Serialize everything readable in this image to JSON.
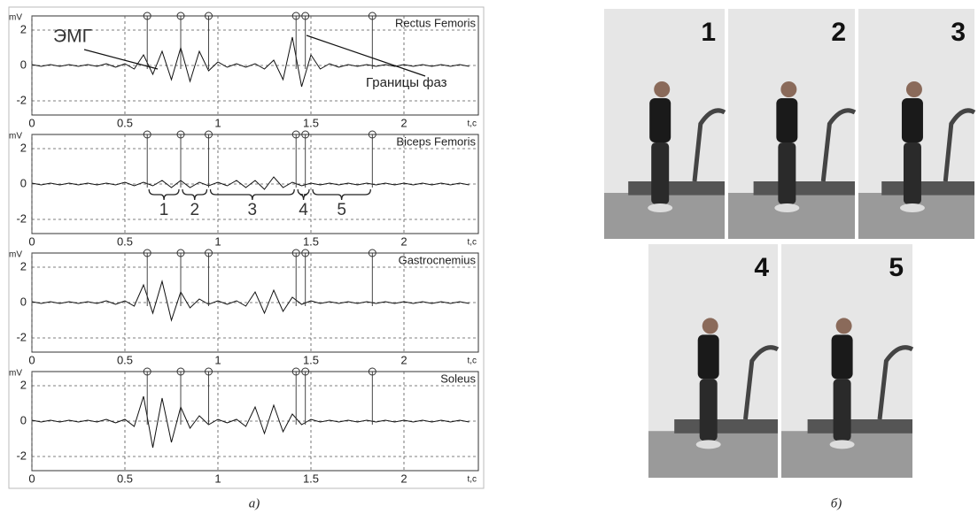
{
  "chart_data": [
    {
      "type": "line",
      "title": "Rectus Femoris",
      "y_label": "mV",
      "x_label": "t,c",
      "x": [
        0,
        0.05,
        0.1,
        0.15,
        0.2,
        0.25,
        0.3,
        0.35,
        0.4,
        0.45,
        0.5,
        0.55,
        0.6,
        0.65,
        0.7,
        0.75,
        0.8,
        0.85,
        0.9,
        0.95,
        1,
        1.05,
        1.1,
        1.15,
        1.2,
        1.25,
        1.3,
        1.35,
        1.4,
        1.45,
        1.5,
        1.55,
        1.6,
        1.65,
        1.7,
        1.75,
        1.8,
        1.85,
        1.9,
        1.95,
        2,
        2.05,
        2.1,
        2.15,
        2.2,
        2.25,
        2.3,
        2.35
      ],
      "values": [
        0.05,
        -0.05,
        0.05,
        -0.05,
        0.05,
        -0.05,
        0.05,
        -0.05,
        0.1,
        -0.1,
        0.1,
        -0.2,
        0.6,
        -0.5,
        0.8,
        -0.8,
        1.0,
        -0.9,
        0.8,
        -0.3,
        0.2,
        -0.1,
        0.1,
        -0.1,
        0.1,
        -0.2,
        0.3,
        -0.8,
        1.6,
        -1.2,
        0.6,
        -0.2,
        0.1,
        -0.1,
        0.05,
        -0.05,
        0.05,
        -0.05,
        0.05,
        -0.05,
        0.05,
        -0.05,
        0.05,
        -0.05,
        0.05,
        -0.05,
        0.05,
        -0.05
      ],
      "color": "#111111",
      "xlim": [
        0,
        2.4
      ],
      "ylim": [
        -2.8,
        2.8
      ],
      "xticks": [
        0,
        0.5,
        1,
        1.5,
        2
      ],
      "yticks": [
        -2,
        0,
        2
      ],
      "grid": true,
      "phase_boundaries": [
        0.62,
        0.8,
        0.95,
        1.42,
        1.47,
        1.83
      ],
      "annotations": [
        "ЭМГ",
        "Границы фаз"
      ]
    },
    {
      "type": "line",
      "title": "Biceps  Femoris",
      "y_label": "mV",
      "x_label": "t,c",
      "x": [
        0,
        0.05,
        0.1,
        0.15,
        0.2,
        0.25,
        0.3,
        0.35,
        0.4,
        0.45,
        0.5,
        0.55,
        0.6,
        0.65,
        0.7,
        0.75,
        0.8,
        0.85,
        0.9,
        0.95,
        1,
        1.05,
        1.1,
        1.15,
        1.2,
        1.25,
        1.3,
        1.35,
        1.4,
        1.45,
        1.5,
        1.55,
        1.6,
        1.65,
        1.7,
        1.75,
        1.8,
        1.85,
        1.9,
        1.95,
        2,
        2.05,
        2.1,
        2.15,
        2.2,
        2.25,
        2.3,
        2.35
      ],
      "values": [
        0.05,
        -0.05,
        0.05,
        -0.05,
        0.05,
        -0.05,
        0.05,
        -0.05,
        0.05,
        -0.05,
        0.1,
        -0.1,
        0.1,
        -0.1,
        0.2,
        -0.2,
        0.2,
        -0.2,
        0.1,
        -0.1,
        0.1,
        -0.1,
        0.2,
        -0.2,
        0.2,
        -0.3,
        0.4,
        -0.2,
        0.1,
        -0.1,
        0.05,
        -0.05,
        0.05,
        -0.05,
        0.05,
        -0.05,
        0.05,
        -0.05,
        0.05,
        -0.05,
        0.05,
        -0.05,
        0.05,
        -0.05,
        0.05,
        -0.05,
        0.05,
        -0.05
      ],
      "color": "#111111",
      "xlim": [
        0,
        2.4
      ],
      "ylim": [
        -2.8,
        2.8
      ],
      "xticks": [
        0,
        0.5,
        1,
        1.5,
        2
      ],
      "yticks": [
        -2,
        0,
        2
      ],
      "grid": true,
      "phase_boundaries": [
        0.62,
        0.8,
        0.95,
        1.42,
        1.47,
        1.83
      ],
      "phase_labels": [
        "1",
        "2",
        "3",
        "4",
        "5"
      ]
    },
    {
      "type": "line",
      "title": "Gastrocnemius",
      "y_label": "mV",
      "x_label": "t,c",
      "x": [
        0,
        0.05,
        0.1,
        0.15,
        0.2,
        0.25,
        0.3,
        0.35,
        0.4,
        0.45,
        0.5,
        0.55,
        0.6,
        0.65,
        0.7,
        0.75,
        0.8,
        0.85,
        0.9,
        0.95,
        1,
        1.05,
        1.1,
        1.15,
        1.2,
        1.25,
        1.3,
        1.35,
        1.4,
        1.45,
        1.5,
        1.55,
        1.6,
        1.65,
        1.7,
        1.75,
        1.8,
        1.85,
        1.9,
        1.95,
        2,
        2.05,
        2.1,
        2.15,
        2.2,
        2.25,
        2.3,
        2.35
      ],
      "values": [
        0.05,
        -0.05,
        0.05,
        -0.05,
        0.05,
        -0.05,
        0.05,
        -0.05,
        0.1,
        -0.1,
        0.1,
        -0.2,
        1.0,
        -0.6,
        1.2,
        -1.0,
        0.6,
        -0.3,
        0.2,
        -0.1,
        0.1,
        -0.1,
        0.1,
        -0.2,
        0.6,
        -0.6,
        0.7,
        -0.5,
        0.3,
        -0.1,
        0.1,
        -0.05,
        0.05,
        -0.05,
        0.05,
        -0.05,
        0.05,
        -0.05,
        0.05,
        -0.05,
        0.05,
        -0.05,
        0.05,
        -0.05,
        0.05,
        -0.05,
        0.05,
        -0.05
      ],
      "color": "#111111",
      "xlim": [
        0,
        2.4
      ],
      "ylim": [
        -2.8,
        2.8
      ],
      "xticks": [
        0,
        0.5,
        1,
        1.5,
        2
      ],
      "yticks": [
        -2,
        0,
        2
      ],
      "grid": true,
      "phase_boundaries": [
        0.62,
        0.8,
        0.95,
        1.42,
        1.47,
        1.83
      ]
    },
    {
      "type": "line",
      "title": "Soleus",
      "y_label": "mV",
      "x_label": "t,c",
      "x": [
        0,
        0.05,
        0.1,
        0.15,
        0.2,
        0.25,
        0.3,
        0.35,
        0.4,
        0.45,
        0.5,
        0.55,
        0.6,
        0.65,
        0.7,
        0.75,
        0.8,
        0.85,
        0.9,
        0.95,
        1,
        1.05,
        1.1,
        1.15,
        1.2,
        1.25,
        1.3,
        1.35,
        1.4,
        1.45,
        1.5,
        1.55,
        1.6,
        1.65,
        1.7,
        1.75,
        1.8,
        1.85,
        1.9,
        1.95,
        2,
        2.05,
        2.1,
        2.15,
        2.2,
        2.25,
        2.3,
        2.35
      ],
      "values": [
        0.05,
        -0.05,
        0.05,
        -0.05,
        0.05,
        -0.05,
        0.05,
        -0.05,
        0.1,
        -0.1,
        0.1,
        -0.3,
        1.4,
        -1.5,
        1.3,
        -1.2,
        0.8,
        -0.4,
        0.3,
        -0.2,
        0.1,
        -0.1,
        0.1,
        -0.3,
        0.8,
        -0.7,
        0.9,
        -0.6,
        0.4,
        -0.2,
        0.1,
        -0.05,
        0.05,
        -0.05,
        0.05,
        -0.05,
        0.05,
        -0.05,
        0.05,
        -0.05,
        0.05,
        -0.05,
        0.05,
        -0.05,
        0.05,
        -0.05,
        0.05,
        -0.05
      ],
      "color": "#111111",
      "xlim": [
        0,
        2.4
      ],
      "ylim": [
        -2.8,
        2.8
      ],
      "xticks": [
        0,
        0.5,
        1,
        1.5,
        2
      ],
      "yticks": [
        -2,
        0,
        2
      ],
      "grid": true,
      "phase_boundaries": [
        0.62,
        0.8,
        0.95,
        1.42,
        1.47,
        1.83
      ]
    }
  ],
  "photos": {
    "labels": [
      "1",
      "2",
      "3",
      "4",
      "5"
    ]
  },
  "captions": [
    "a)",
    "б)"
  ]
}
